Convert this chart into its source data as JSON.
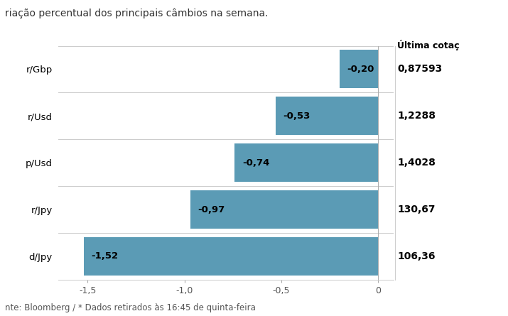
{
  "subtitle": "riação percentual dos principais câmbios na semana.",
  "categories": [
    "r/Gbp",
    "r/Usd",
    "p/Usd",
    "r/Jpy",
    "d/Jpy"
  ],
  "values": [
    -0.2,
    -0.53,
    -0.74,
    -0.97,
    -1.52
  ],
  "bar_labels": [
    "-0,20",
    "-0,53",
    "-0,74",
    "-0,97",
    "-1,52"
  ],
  "ultima_cotacao_header": "Última cotaç",
  "ultima_cotacao_values": [
    "0,87593",
    "1,2288",
    "1,4028",
    "130,67",
    "106,36"
  ],
  "bar_color": "#5b9bb5",
  "xlim": [
    -1.65,
    0.08
  ],
  "xticks": [
    -1.5,
    -1.0,
    -0.5,
    0
  ],
  "xtick_labels": [
    "-1,5",
    "-1,0",
    "-0,5",
    "0"
  ],
  "footer": "nte: Bloomberg / * Dados retirados às 16:45 de quinta-feira",
  "background_color": "#ffffff",
  "bar_height": 0.82,
  "label_fontsize": 9.5,
  "category_fontsize": 9.5,
  "cotacao_fontsize": 10,
  "subtitle_fontsize": 10,
  "footer_fontsize": 8.5
}
